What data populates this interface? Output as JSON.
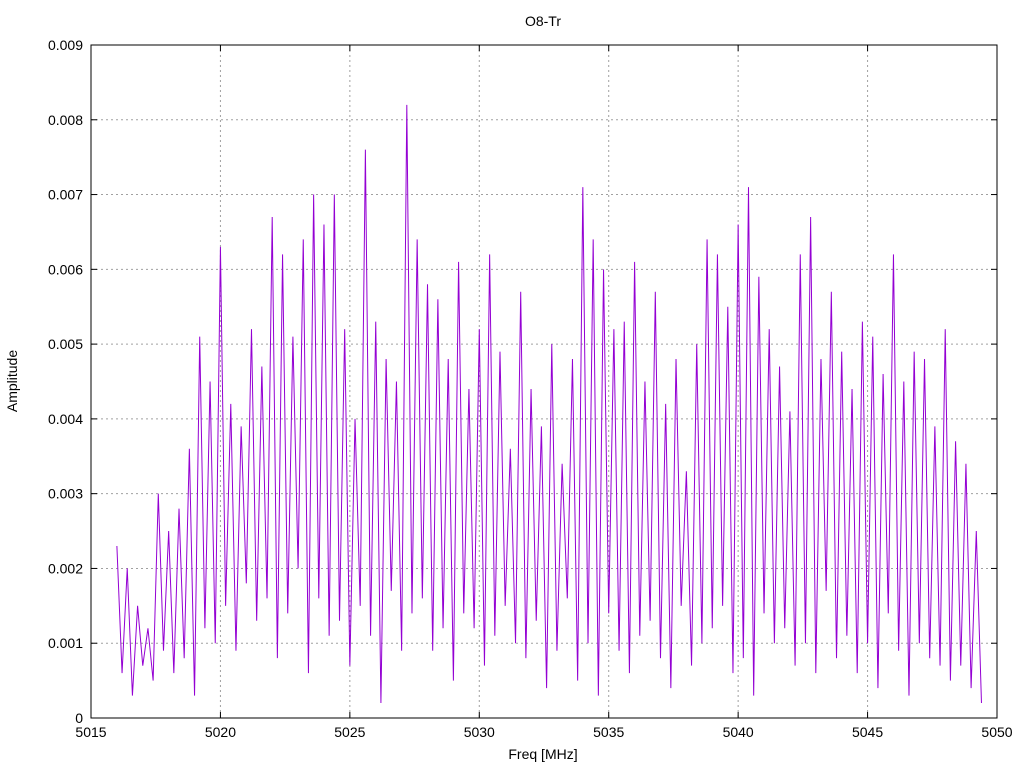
{
  "chart_data": {
    "type": "line",
    "title": "O8-Tr",
    "xlabel": "Freq [MHz]",
    "ylabel": "Amplitude",
    "xlim": [
      5015,
      5050
    ],
    "ylim": [
      0,
      0.009
    ],
    "x_ticks": [
      "5015",
      "5020",
      "5025",
      "5030",
      "5035",
      "5040",
      "5045",
      "5050"
    ],
    "y_ticks": [
      "0",
      "0.001",
      "0.002",
      "0.003",
      "0.004",
      "0.005",
      "0.006",
      "0.007",
      "0.008",
      "0.009"
    ],
    "grid": true,
    "line_color": "#9400D3",
    "sampling": {
      "x_start": 5016.0,
      "x_step": 0.2
    },
    "series": [
      {
        "values": [
          0.0023,
          0.0006,
          0.002,
          0.0003,
          0.0015,
          0.0007,
          0.0012,
          0.0005,
          0.003,
          0.0009,
          0.0025,
          0.0006,
          0.0028,
          0.0008,
          0.0036,
          0.0003,
          0.0051,
          0.0012,
          0.0045,
          0.001,
          0.0063,
          0.0015,
          0.0042,
          0.0009,
          0.0039,
          0.0018,
          0.0052,
          0.0013,
          0.0047,
          0.0016,
          0.0067,
          0.0008,
          0.0062,
          0.0014,
          0.0051,
          0.002,
          0.0064,
          0.0006,
          0.007,
          0.0016,
          0.0066,
          0.0011,
          0.007,
          0.0013,
          0.0052,
          0.0007,
          0.004,
          0.0015,
          0.0076,
          0.0011,
          0.0053,
          0.0002,
          0.0048,
          0.0017,
          0.0045,
          0.0009,
          0.0082,
          0.0014,
          0.0064,
          0.0016,
          0.0058,
          0.0009,
          0.0056,
          0.0012,
          0.0048,
          0.0005,
          0.0061,
          0.0014,
          0.0044,
          0.0012,
          0.0052,
          0.0007,
          0.0062,
          0.0011,
          0.0049,
          0.0015,
          0.0036,
          0.001,
          0.0057,
          0.0008,
          0.0044,
          0.0013,
          0.0039,
          0.0004,
          0.005,
          0.0009,
          0.0034,
          0.0016,
          0.0048,
          0.0005,
          0.0071,
          0.001,
          0.0064,
          0.0003,
          0.006,
          0.0014,
          0.0052,
          0.0009,
          0.0053,
          0.0006,
          0.0061,
          0.0011,
          0.0045,
          0.0013,
          0.0057,
          0.0008,
          0.0042,
          0.0004,
          0.0048,
          0.0015,
          0.0033,
          0.0007,
          0.005,
          0.001,
          0.0064,
          0.0012,
          0.0062,
          0.0015,
          0.0055,
          0.0006,
          0.0066,
          0.0008,
          0.0071,
          0.0003,
          0.0059,
          0.0014,
          0.0052,
          0.001,
          0.0047,
          0.0012,
          0.0041,
          0.0007,
          0.0062,
          0.001,
          0.0067,
          0.0006,
          0.0048,
          0.0017,
          0.0057,
          0.0008,
          0.0049,
          0.0011,
          0.0044,
          0.0006,
          0.0053,
          0.001,
          0.0051,
          0.0004,
          0.0046,
          0.0014,
          0.0062,
          0.0009,
          0.0045,
          0.0003,
          0.0049,
          0.001,
          0.0048,
          0.0008,
          0.0039,
          0.0007,
          0.0052,
          0.0005,
          0.0037,
          0.0007,
          0.0034,
          0.0004,
          0.0025,
          0.0002
        ]
      }
    ]
  }
}
